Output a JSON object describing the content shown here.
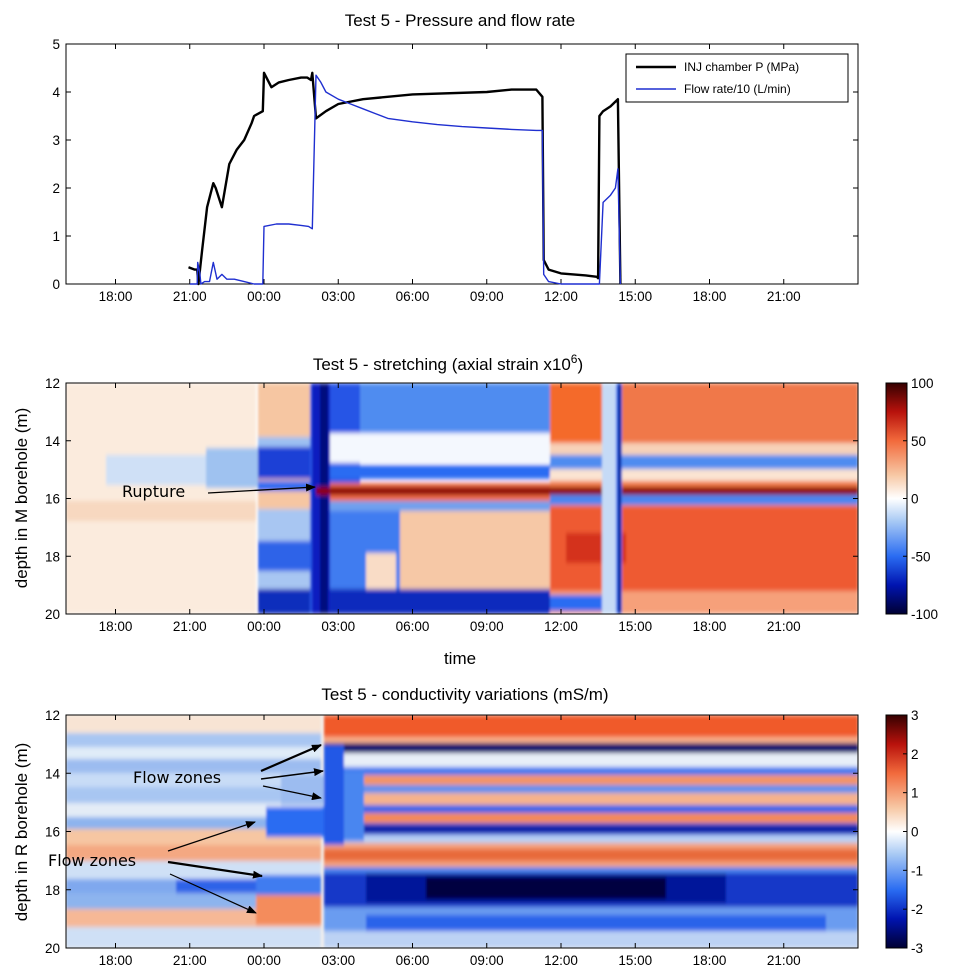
{
  "chart_data": [
    {
      "type": "line",
      "title": "Test 5 - Pressure and flow rate",
      "xlabel": "",
      "ylabel": "",
      "xlim": [
        "16:00",
        "24:00 (+1 day)"
      ],
      "ylim": [
        0,
        5
      ],
      "x_ticks": [
        "18:00",
        "21:00",
        "00:00",
        "03:00",
        "06:00",
        "09:00",
        "12:00",
        "15:00",
        "18:00",
        "21:00"
      ],
      "y_ticks": [
        "0",
        "1",
        "2",
        "3",
        "4",
        "5"
      ],
      "legend_position": "top-right",
      "grid": false,
      "x_unit": "hours since 16:00",
      "series": [
        {
          "name": "INJ chamber P (MPa)",
          "color": "#000000",
          "x": [
            4.95,
            5.2,
            5.3,
            5.35,
            5.5,
            5.7,
            5.85,
            5.95,
            6.05,
            6.3,
            6.6,
            6.9,
            7.2,
            7.5,
            7.6,
            7.95,
            8.0,
            8.3,
            8.6,
            9.0,
            9.5,
            9.75,
            9.9,
            9.95,
            10.1,
            10.5,
            11.0,
            12.0,
            14.0,
            17.0,
            18.0,
            19.0,
            19.25,
            19.3,
            19.5,
            20.0,
            21.0,
            21.45,
            21.5,
            21.55,
            21.7,
            22.0,
            22.2,
            22.3,
            22.4
          ],
          "y": [
            0.35,
            0.3,
            0.3,
            0.0,
            0.7,
            1.6,
            1.9,
            2.1,
            2.0,
            1.6,
            2.5,
            2.8,
            3.0,
            3.35,
            3.5,
            3.6,
            4.4,
            4.1,
            4.2,
            4.25,
            4.3,
            4.3,
            4.25,
            4.4,
            3.45,
            3.6,
            3.75,
            3.85,
            3.95,
            4.0,
            4.05,
            4.05,
            3.9,
            0.5,
            0.3,
            0.22,
            0.18,
            0.15,
            0.12,
            3.5,
            3.6,
            3.7,
            3.8,
            3.85,
            0.0
          ]
        },
        {
          "name": "Flow rate/10 (L/min)",
          "color": "#1f2fd0",
          "x": [
            5.0,
            5.3,
            5.32,
            5.4,
            5.45,
            5.6,
            5.8,
            5.95,
            6.1,
            6.3,
            6.5,
            6.8,
            7.2,
            7.6,
            7.95,
            8.0,
            8.5,
            9.0,
            9.5,
            9.8,
            9.95,
            10.1,
            10.3,
            10.5,
            11.0,
            11.5,
            12.0,
            12.5,
            13.0,
            14.0,
            15.0,
            16.0,
            17.0,
            18.0,
            19.0,
            19.25,
            19.3,
            19.5,
            20.0,
            21.0,
            21.5,
            21.55,
            21.7,
            22.0,
            22.2,
            22.3,
            22.4
          ],
          "y": [
            0.0,
            0.0,
            0.45,
            0.25,
            0.0,
            0.05,
            0.05,
            0.45,
            0.1,
            0.2,
            0.1,
            0.1,
            0.05,
            0.0,
            0.0,
            1.2,
            1.25,
            1.25,
            1.22,
            1.2,
            1.15,
            4.35,
            4.2,
            4.0,
            3.85,
            3.75,
            3.65,
            3.55,
            3.45,
            3.38,
            3.32,
            3.28,
            3.25,
            3.22,
            3.2,
            3.2,
            0.2,
            0.05,
            0.0,
            0.0,
            0.0,
            0.0,
            1.7,
            1.85,
            2.0,
            2.4,
            0.0
          ]
        }
      ]
    },
    {
      "type": "heatmap",
      "title": "Test 5 - stretching (axial strain x10",
      "title_sup": "6",
      "title_end": ")",
      "xlabel": "time",
      "ylabel": "depth in M borehole (m)",
      "x_ticks": [
        "18:00",
        "21:00",
        "00:00",
        "03:00",
        "06:00",
        "09:00",
        "12:00",
        "15:00",
        "18:00",
        "21:00"
      ],
      "y_ticks": [
        "12",
        "14",
        "16",
        "18",
        "20"
      ],
      "ylim": [
        20,
        12
      ],
      "colorbar": {
        "range": [
          -100,
          100
        ],
        "ticks": [
          "100",
          "50",
          "0",
          "-50",
          "-100"
        ],
        "colors_low_to_high": [
          "#000033",
          "#0014b0",
          "#2a6cf2",
          "#a6c8f4",
          "#ffffff",
          "#f7c9a6",
          "#f26a3c",
          "#b8120c",
          "#350000"
        ]
      },
      "annotations": [
        {
          "text": "Rupture"
        }
      ]
    },
    {
      "type": "heatmap",
      "title": "Test 5 - conductivity variations (mS/m)",
      "xlabel": "",
      "ylabel": "depth in R borehole (m)",
      "x_ticks": [
        "18:00",
        "21:00",
        "00:00",
        "03:00",
        "06:00",
        "09:00",
        "12:00",
        "15:00",
        "18:00",
        "21:00"
      ],
      "y_ticks": [
        "12",
        "14",
        "16",
        "18",
        "20"
      ],
      "ylim": [
        20,
        12
      ],
      "colorbar": {
        "range": [
          -3,
          3
        ],
        "ticks": [
          "3",
          "2",
          "1",
          "0",
          "-1",
          "-2",
          "-3"
        ],
        "colors_low_to_high": [
          "#000033",
          "#0014b0",
          "#2a6cf2",
          "#a6c8f4",
          "#ffffff",
          "#f7c9a6",
          "#f26a3c",
          "#b8120c",
          "#350000"
        ]
      },
      "annotations": [
        {
          "text": "Flow zones"
        },
        {
          "text": "Flow zones"
        }
      ]
    }
  ]
}
